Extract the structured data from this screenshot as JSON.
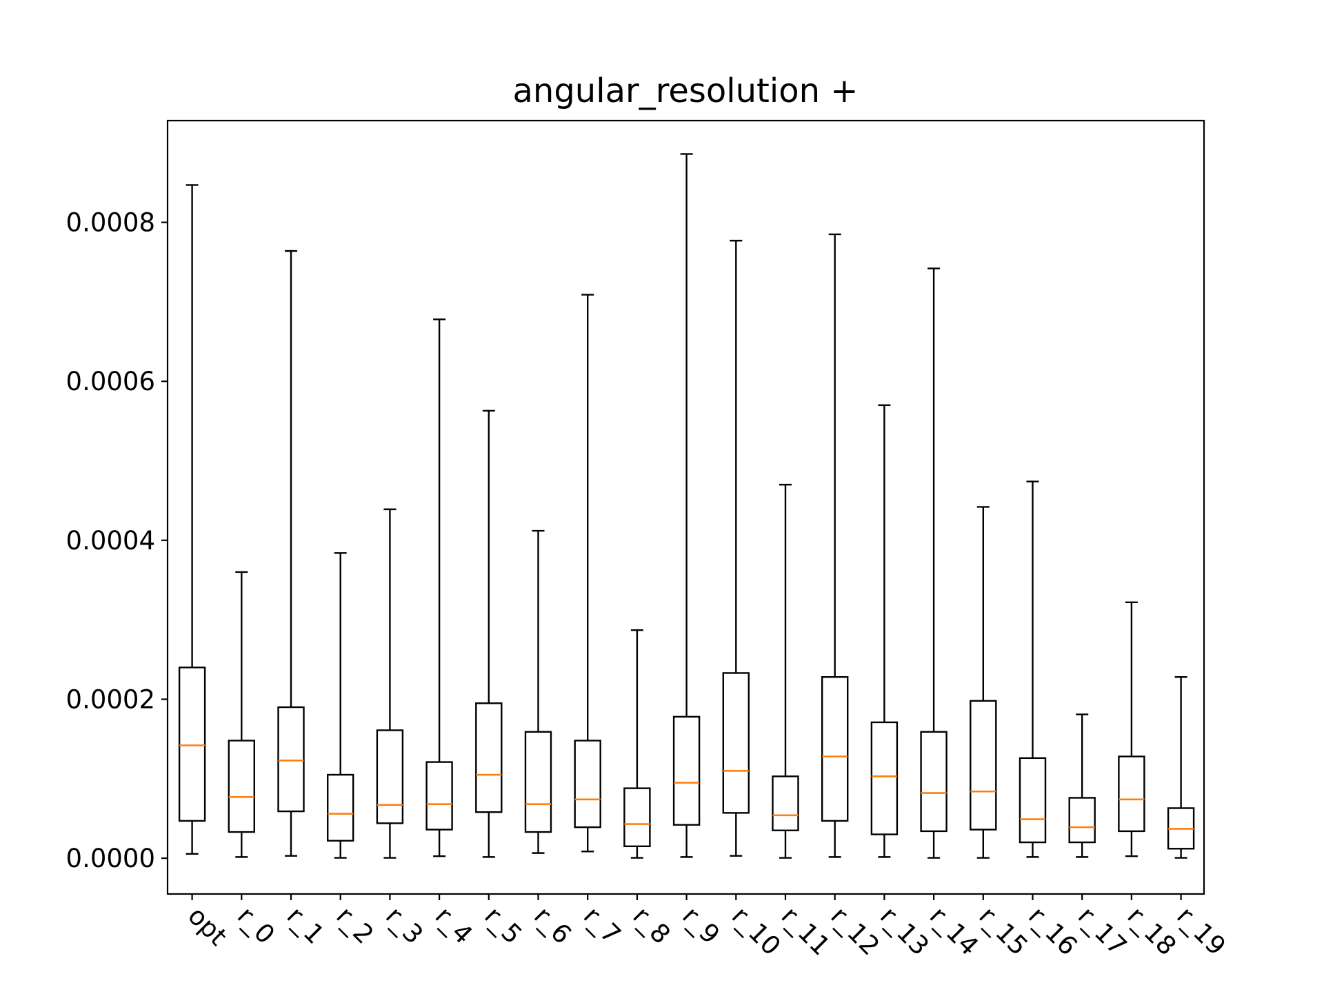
{
  "chart_data": {
    "type": "box",
    "title": "angular_resolution +",
    "xlabel": "",
    "ylabel": "",
    "ylim": [
      -4.5e-05,
      0.000928
    ],
    "yticks": [
      0.0,
      0.0002,
      0.0004,
      0.0006,
      0.0008
    ],
    "ytick_labels": [
      "0.0000",
      "0.0002",
      "0.0004",
      "0.0006",
      "0.0008"
    ],
    "grid": false,
    "categories": [
      "opt",
      "r_0",
      "r_1",
      "r_2",
      "r_3",
      "r_4",
      "r_5",
      "r_6",
      "r_7",
      "r_8",
      "r_9",
      "r_10",
      "r_11",
      "r_12",
      "r_13",
      "r_14",
      "r_15",
      "r_16",
      "r_17",
      "r_18",
      "r_19"
    ],
    "series": [
      {
        "stats": [
          {
            "whislo": 5.5e-06,
            "q1": 4.7e-05,
            "median": 0.000142,
            "q3": 0.00024,
            "whishi": 0.000847
          },
          {
            "whislo": 1.5e-06,
            "q1": 3.3e-05,
            "median": 7.7e-05,
            "q3": 0.000148,
            "whishi": 0.00036
          },
          {
            "whislo": 3e-06,
            "q1": 5.9e-05,
            "median": 0.000123,
            "q3": 0.00019,
            "whishi": 0.000764
          },
          {
            "whislo": 5e-07,
            "q1": 2.2e-05,
            "median": 5.6e-05,
            "q3": 0.000105,
            "whishi": 0.000384
          },
          {
            "whislo": 5e-07,
            "q1": 4.4e-05,
            "median": 6.7e-05,
            "q3": 0.000161,
            "whishi": 0.000439
          },
          {
            "whislo": 2.5e-06,
            "q1": 3.6e-05,
            "median": 6.8e-05,
            "q3": 0.000121,
            "whishi": 0.000678
          },
          {
            "whislo": 1.5e-06,
            "q1": 5.8e-05,
            "median": 0.000105,
            "q3": 0.000195,
            "whishi": 0.000563
          },
          {
            "whislo": 6.5e-06,
            "q1": 3.3e-05,
            "median": 6.8e-05,
            "q3": 0.000159,
            "whishi": 0.000412
          },
          {
            "whislo": 8.5e-06,
            "q1": 3.9e-05,
            "median": 7.4e-05,
            "q3": 0.000148,
            "whishi": 0.000709
          },
          {
            "whislo": 5e-07,
            "q1": 1.5e-05,
            "median": 4.3e-05,
            "q3": 8.8e-05,
            "whishi": 0.000287
          },
          {
            "whislo": 1.5e-06,
            "q1": 4.2e-05,
            "median": 9.5e-05,
            "q3": 0.000178,
            "whishi": 0.000886
          },
          {
            "whislo": 3e-06,
            "q1": 5.7e-05,
            "median": 0.00011,
            "q3": 0.000233,
            "whishi": 0.000777
          },
          {
            "whislo": 5e-07,
            "q1": 3.5e-05,
            "median": 5.4e-05,
            "q3": 0.000103,
            "whishi": 0.00047
          },
          {
            "whislo": 1.5e-06,
            "q1": 4.7e-05,
            "median": 0.000128,
            "q3": 0.000228,
            "whishi": 0.000785
          },
          {
            "whislo": 1.5e-06,
            "q1": 3e-05,
            "median": 0.000103,
            "q3": 0.000171,
            "whishi": 0.00057
          },
          {
            "whislo": 5e-07,
            "q1": 3.4e-05,
            "median": 8.2e-05,
            "q3": 0.000159,
            "whishi": 0.000742
          },
          {
            "whislo": 5e-07,
            "q1": 3.6e-05,
            "median": 8.4e-05,
            "q3": 0.000198,
            "whishi": 0.000442
          },
          {
            "whislo": 1.5e-06,
            "q1": 2e-05,
            "median": 4.9e-05,
            "q3": 0.000126,
            "whishi": 0.000474
          },
          {
            "whislo": 1.5e-06,
            "q1": 2e-05,
            "median": 3.9e-05,
            "q3": 7.6e-05,
            "whishi": 0.000181
          },
          {
            "whislo": 2.5e-06,
            "q1": 3.4e-05,
            "median": 7.4e-05,
            "q3": 0.000128,
            "whishi": 0.000322
          },
          {
            "whislo": 5e-07,
            "q1": 1.2e-05,
            "median": 3.7e-05,
            "q3": 6.3e-05,
            "whishi": 0.000228
          }
        ]
      }
    ],
    "colors": {
      "box": "#000000",
      "median": "#ff7f0e",
      "whisker": "#000000",
      "axes": "#000000",
      "background": "#ffffff"
    }
  }
}
